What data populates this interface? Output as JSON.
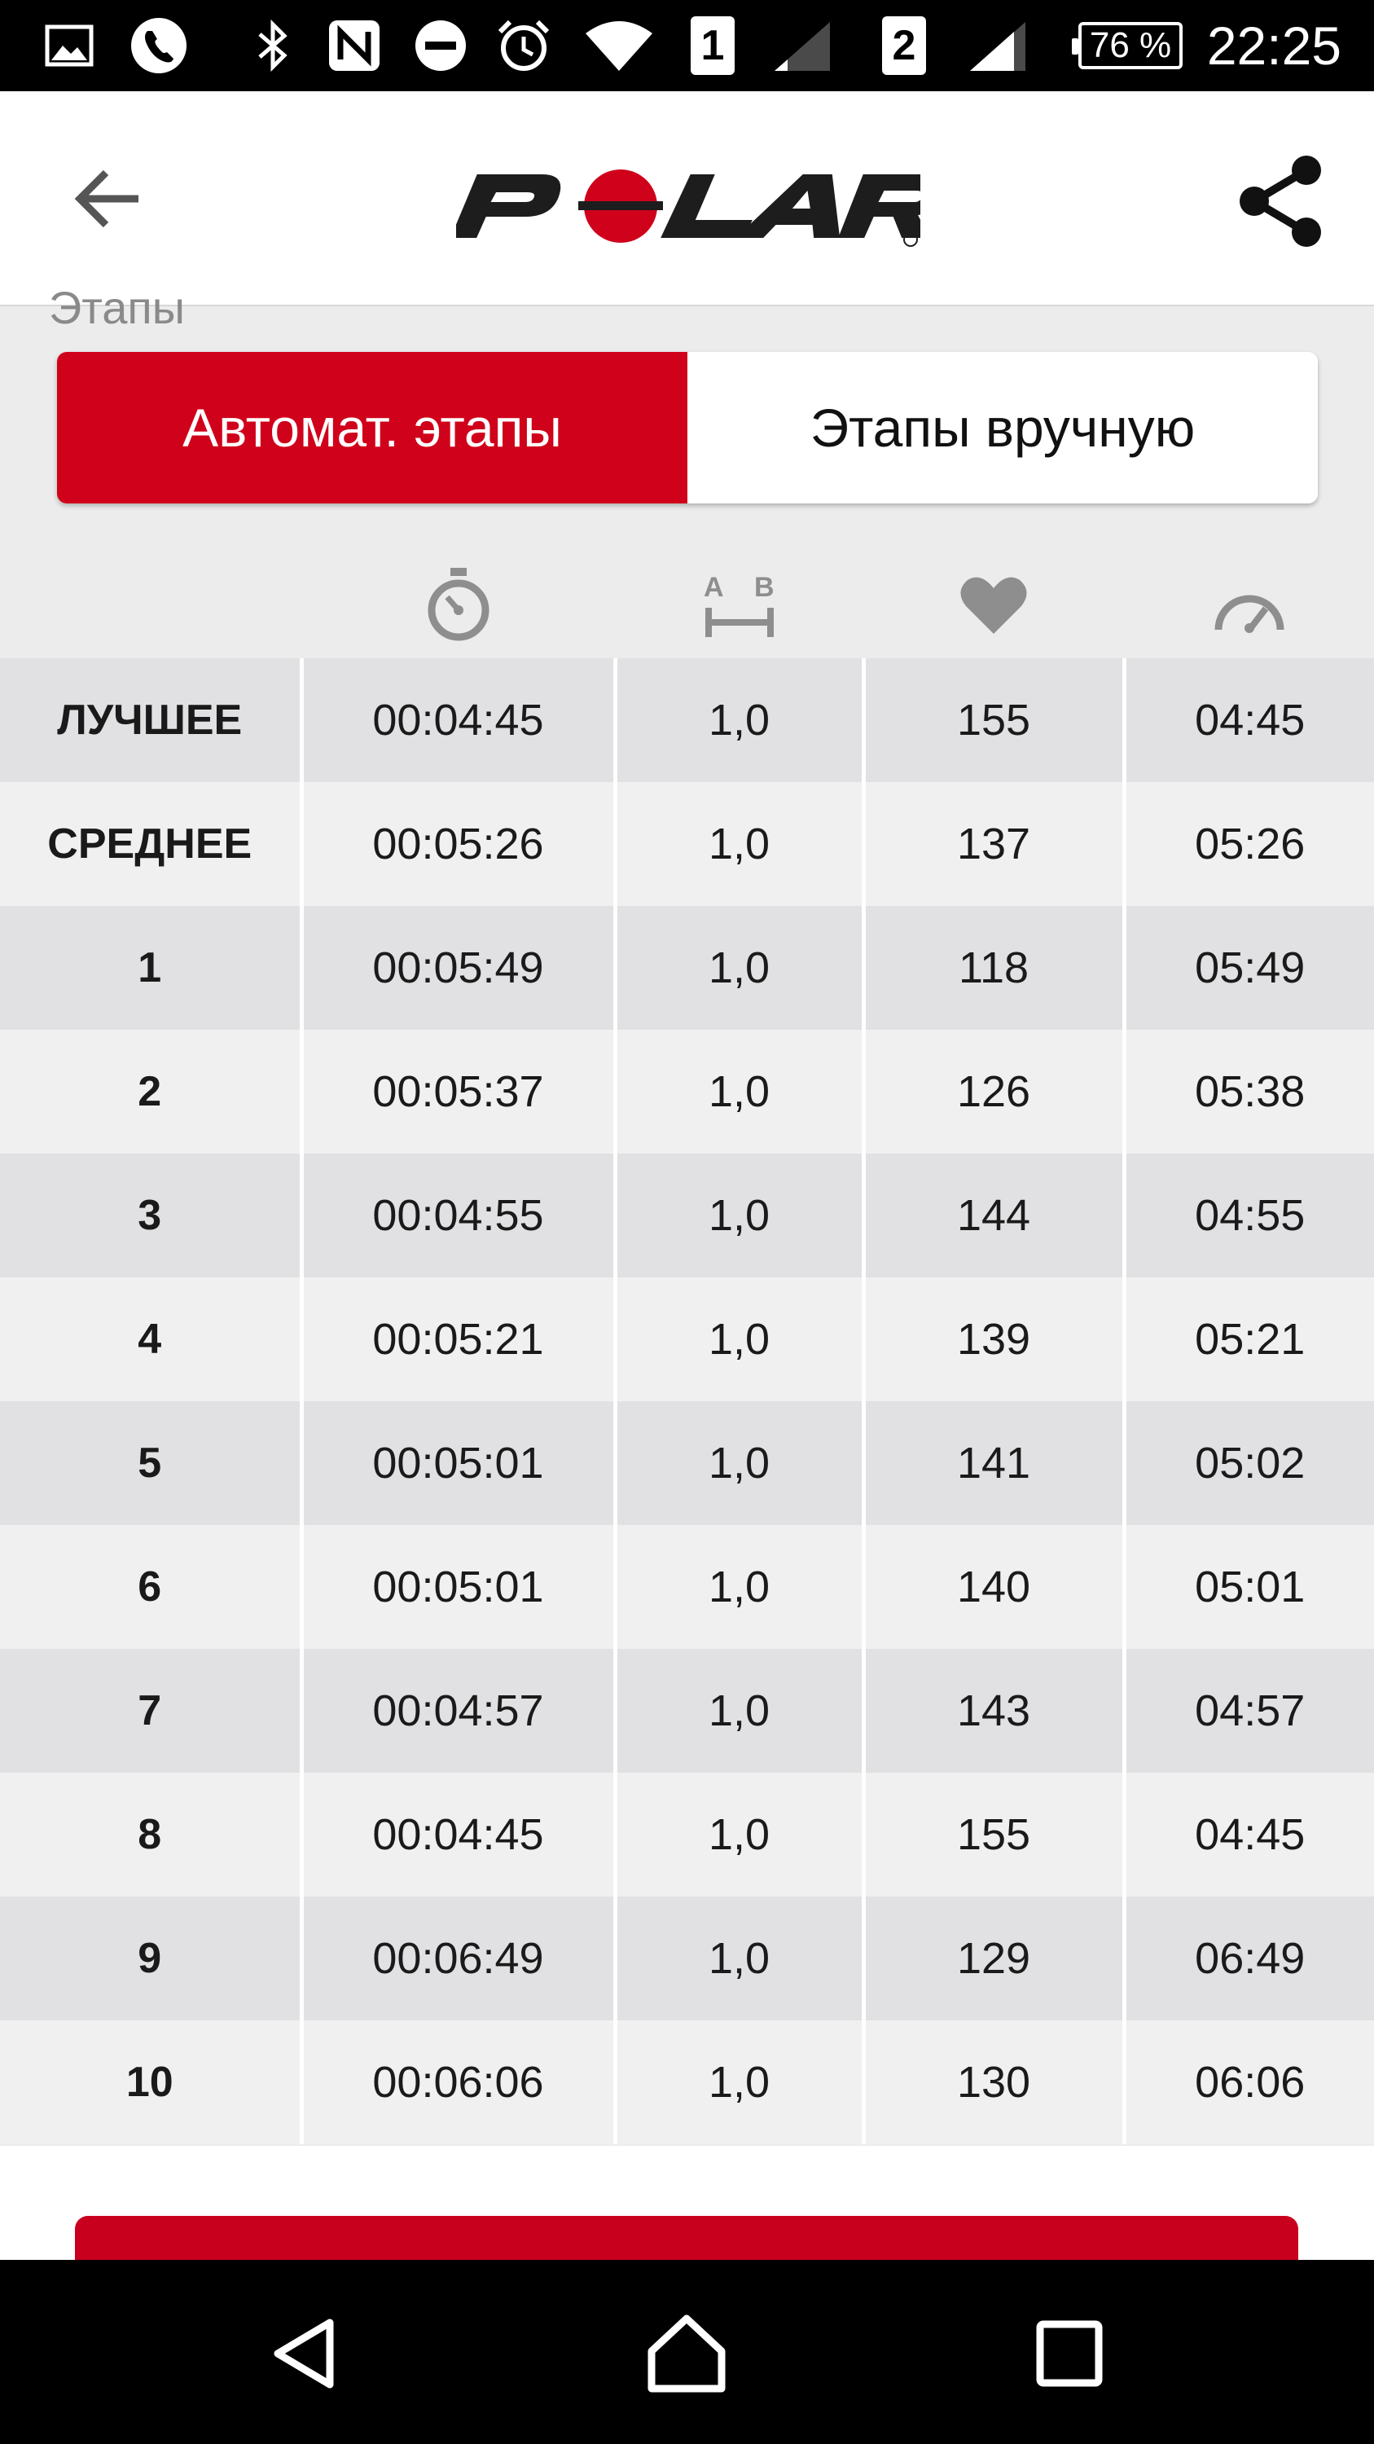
{
  "status_bar": {
    "sim1": "1",
    "sim2": "2",
    "battery": "76 %",
    "time": "22:25"
  },
  "header": {
    "logo_text": "POLAR",
    "back_icon": "arrow-left-icon",
    "share_icon": "share-icon"
  },
  "section": {
    "title": "Этапы"
  },
  "tabs": [
    {
      "label": "Автомат. этапы",
      "active": true
    },
    {
      "label": "Этапы вручную",
      "active": false
    }
  ],
  "columns": [
    "stopwatch-icon",
    "distance-icon",
    "heart-icon",
    "speedometer-icon"
  ],
  "rows": [
    {
      "label": "ЛУЧШЕЕ",
      "time": "00:04:45",
      "distance": "1,0",
      "hr": "155",
      "pace": "04:45"
    },
    {
      "label": "СРЕДНЕЕ",
      "time": "00:05:26",
      "distance": "1,0",
      "hr": "137",
      "pace": "05:26"
    },
    {
      "label": "1",
      "time": "00:05:49",
      "distance": "1,0",
      "hr": "118",
      "pace": "05:49"
    },
    {
      "label": "2",
      "time": "00:05:37",
      "distance": "1,0",
      "hr": "126",
      "pace": "05:38"
    },
    {
      "label": "3",
      "time": "00:04:55",
      "distance": "1,0",
      "hr": "144",
      "pace": "04:55"
    },
    {
      "label": "4",
      "time": "00:05:21",
      "distance": "1,0",
      "hr": "139",
      "pace": "05:21"
    },
    {
      "label": "5",
      "time": "00:05:01",
      "distance": "1,0",
      "hr": "141",
      "pace": "05:02"
    },
    {
      "label": "6",
      "time": "00:05:01",
      "distance": "1,0",
      "hr": "140",
      "pace": "05:01"
    },
    {
      "label": "7",
      "time": "00:04:57",
      "distance": "1,0",
      "hr": "143",
      "pace": "04:57"
    },
    {
      "label": "8",
      "time": "00:04:45",
      "distance": "1,0",
      "hr": "155",
      "pace": "04:45"
    },
    {
      "label": "9",
      "time": "00:06:49",
      "distance": "1,0",
      "hr": "129",
      "pace": "06:49"
    },
    {
      "label": "10",
      "time": "00:06:06",
      "distance": "1,0",
      "hr": "130",
      "pace": "06:06"
    }
  ],
  "colors": {
    "accent": "#d0021b",
    "row_dark": "#e1e1e3",
    "row_light": "#f0f0f0"
  }
}
